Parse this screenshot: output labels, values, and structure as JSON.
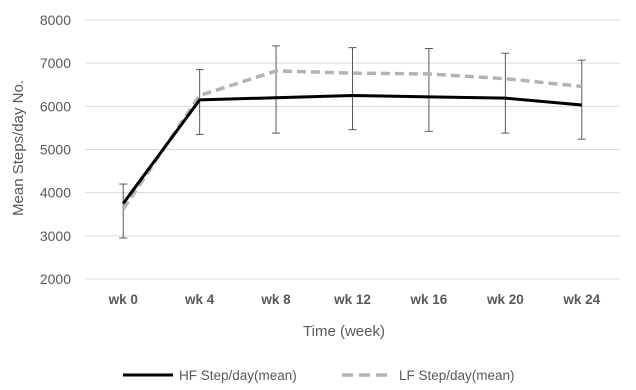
{
  "chart_data": {
    "type": "line",
    "categories": [
      "wk 0",
      "wk 4",
      "wk 8",
      "wk 12",
      "wk 16",
      "wk 20",
      "wk 24"
    ],
    "series": [
      {
        "name": "HF Step/day(mean)",
        "values": [
          3750,
          6150,
          6200,
          6250,
          6220,
          6190,
          6030
        ],
        "error_upper": [
          4200,
          6850,
          7400,
          7360,
          7340,
          7230,
          7070
        ],
        "error_lower": [
          2950,
          5350,
          5380,
          5460,
          5420,
          5380,
          5240
        ],
        "color": "#000000",
        "style": "solid"
      },
      {
        "name": "LF Step/day(mean)",
        "values": [
          3620,
          6250,
          6820,
          6770,
          6750,
          6640,
          6460
        ],
        "color": "#b3b3b3",
        "style": "dashed"
      }
    ],
    "xlabel": "Time (week)",
    "ylabel": "Mean Steps/day No.",
    "ylim": [
      2000,
      8000
    ],
    "yticks": [
      2000,
      3000,
      4000,
      5000,
      6000,
      7000,
      8000
    ],
    "grid": true,
    "legend_position": "bottom"
  }
}
